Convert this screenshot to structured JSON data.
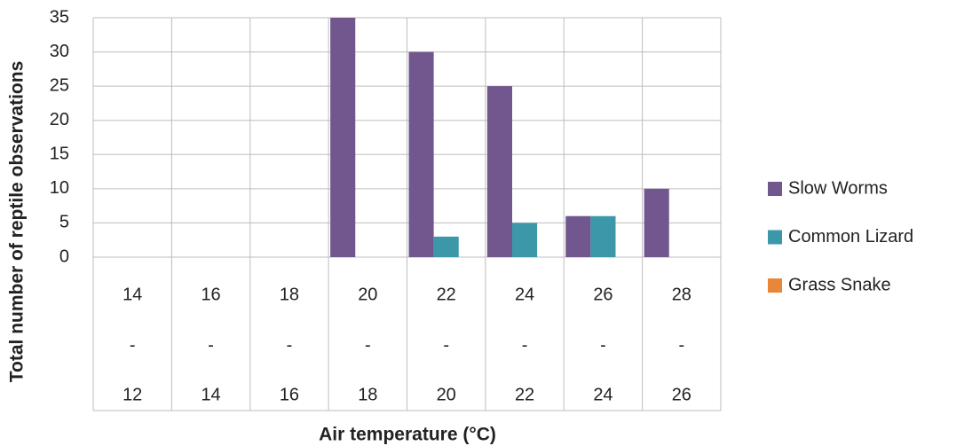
{
  "chart_data": {
    "type": "bar",
    "x_label": "Air temperature (°C)",
    "y_label": "Total number of reptile observations",
    "categories": [
      [
        "14",
        "-",
        "12"
      ],
      [
        "16",
        "-",
        "14"
      ],
      [
        "18",
        "-",
        "16"
      ],
      [
        "20",
        "-",
        "18"
      ],
      [
        "22",
        "-",
        "20"
      ],
      [
        "24",
        "-",
        "22"
      ],
      [
        "26",
        "-",
        "24"
      ],
      [
        "28",
        "-",
        "26"
      ]
    ],
    "series": [
      {
        "name": "Slow Worms",
        "color": "#72578f",
        "values": [
          0,
          0,
          0,
          35,
          30,
          25,
          6,
          10
        ]
      },
      {
        "name": "Common Lizard",
        "color": "#3c98a8",
        "values": [
          0,
          0,
          0,
          0,
          3,
          5,
          6,
          0
        ]
      },
      {
        "name": "Grass Snake",
        "color": "#e8873a",
        "values": [
          0,
          0,
          0,
          0,
          0,
          0,
          0,
          0
        ]
      }
    ],
    "ylim": [
      0,
      35
    ],
    "yticks": [
      0,
      5,
      10,
      15,
      20,
      25,
      30,
      35
    ],
    "grid": true,
    "legend": "right"
  }
}
